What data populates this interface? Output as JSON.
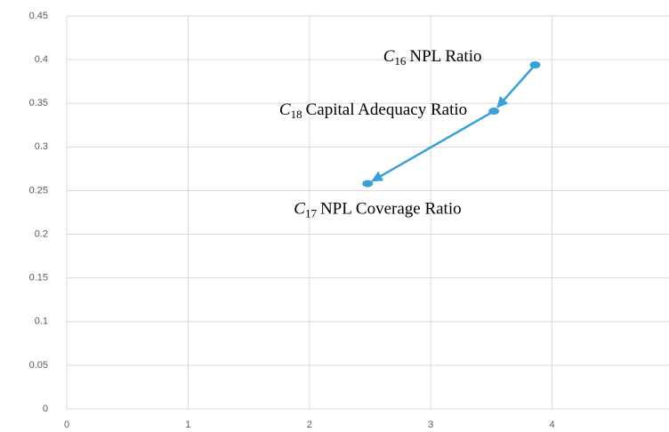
{
  "chart_data": {
    "type": "scatter",
    "x": [
      3.86,
      3.52,
      2.48
    ],
    "series": [
      {
        "color": "#3a9fd8",
        "values": [
          0.394,
          0.341,
          0.258
        ],
        "labels": [
          {
            "letter": "C",
            "sub": "16",
            "text": "NPL Ratio"
          },
          {
            "letter": "C",
            "sub": "18",
            "text": "Capital Adequacy Ratio"
          },
          {
            "letter": "C",
            "sub": "17",
            "text": "NPL Coverage Ratio"
          }
        ]
      }
    ],
    "xlim": [
      0,
      5
    ],
    "xticks": [
      0,
      1,
      2,
      3,
      4,
      5
    ],
    "ylim": [
      0,
      0.45
    ],
    "yticks": [
      0,
      0.05,
      0.1,
      0.15,
      0.2,
      0.25,
      0.3,
      0.35,
      0.4,
      0.45
    ],
    "grid": true
  }
}
